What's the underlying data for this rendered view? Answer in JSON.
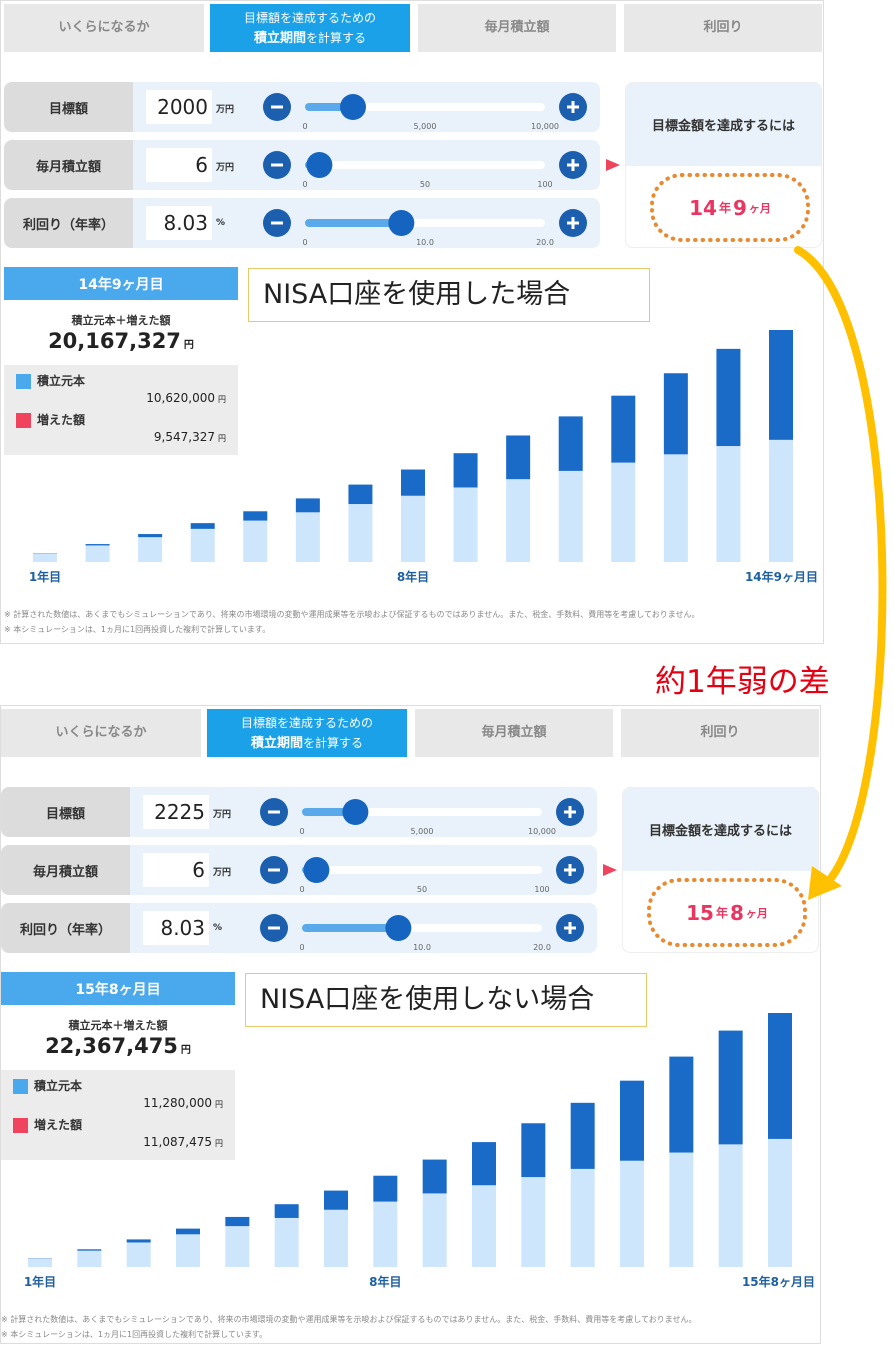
{
  "annotation": "約1年弱の差",
  "panels": [
    {
      "tabs": [
        "いくらになるか",
        {
          "line1": "目標額を達成するための",
          "line2_bold": "積立期間",
          "line2_rest": "を計算する"
        },
        "毎月積立額",
        "利回り"
      ],
      "inputs": [
        {
          "label": "目標額",
          "value": 2000,
          "unit": "万円",
          "ticks": [
            0,
            {
              "value": 5000,
              "label": "5,000"
            },
            {
              "value": 10000,
              "label": "10,000"
            }
          ]
        },
        {
          "label": "毎月積立額",
          "value": 6,
          "unit": "万円",
          "ticks": [
            0,
            50,
            100
          ]
        },
        {
          "label": "利回り（年率）",
          "value": 8.03,
          "unit": "%",
          "ticks": [
            0,
            {
              "value": 10,
              "label": "10.0"
            },
            {
              "value": 20,
              "label": "20.0"
            }
          ]
        }
      ],
      "result": {
        "heading": "目標金額を達成するには",
        "years": 14,
        "year_unit": "年",
        "months": 9,
        "month_unit": "ヶ月"
      },
      "summary": {
        "title": "14年9ヶ月目",
        "total_label": "積立元本＋増えた額",
        "total": "20,167,327",
        "currency": "円",
        "legend": [
          {
            "name": "積立元本",
            "color": "#4aa8ec",
            "amount": "10,620,000"
          },
          {
            "name": "増えた額",
            "color": "#f0435e",
            "amount": "9,547,327"
          }
        ]
      },
      "callout": "NISA口座を使用した場合",
      "chart": {
        "type": "bar",
        "stacked": true,
        "categories": [
          "1年目",
          null,
          null,
          null,
          null,
          null,
          null,
          "8年目",
          null,
          null,
          null,
          null,
          null,
          null,
          "14年9ヶ月目"
        ],
        "series": [
          {
            "color": "#cde6fb",
            "values": [
              72,
              144,
              216,
              288,
              360,
              432,
              504,
              576,
              648,
              720,
              792,
              864,
              936,
              1008,
              1062
            ]
          },
          {
            "color": "#1a6bc8",
            "values": [
              3,
              12,
              27,
              50,
              81,
              121,
              169,
              228,
              298,
              380,
              474,
              582,
              705,
              845,
              955
            ]
          }
        ]
      },
      "footnotes": [
        "※ 計算された数値は、あくまでもシミュレーションであり、将来の市場環境の変動や運用成果等を示唆および保証するものではありません。また、税金、手数料、費用等を考慮しておりません。",
        "※ 本シミュレーションは、1ヵ月に1回再投資した複利で計算しています。"
      ]
    },
    {
      "tabs": [
        "いくらになるか",
        {
          "line1": "目標額を達成するための",
          "line2_bold": "積立期間",
          "line2_rest": "を計算する"
        },
        "毎月積立額",
        "利回り"
      ],
      "inputs": [
        {
          "label": "目標額",
          "value": 2225,
          "unit": "万円",
          "ticks": [
            0,
            {
              "value": 5000,
              "label": "5,000"
            },
            {
              "value": 10000,
              "label": "10,000"
            }
          ]
        },
        {
          "label": "毎月積立額",
          "value": 6,
          "unit": "万円",
          "ticks": [
            0,
            50,
            100
          ]
        },
        {
          "label": "利回り（年率）",
          "value": 8.03,
          "unit": "%",
          "ticks": [
            0,
            {
              "value": 10,
              "label": "10.0"
            },
            {
              "value": 20,
              "label": "20.0"
            }
          ]
        }
      ],
      "result": {
        "heading": "目標金額を達成するには",
        "years": 15,
        "year_unit": "年",
        "months": 8,
        "month_unit": "ヶ月"
      },
      "summary": {
        "title": "15年8ヶ月目",
        "total_label": "積立元本＋増えた額",
        "total": "22,367,475",
        "currency": "円",
        "legend": [
          {
            "name": "積立元本",
            "color": "#4aa8ec",
            "amount": "11,280,000"
          },
          {
            "name": "増えた額",
            "color": "#f0435e",
            "amount": "11,087,475"
          }
        ]
      },
      "callout": "NISA口座を使用しない場合",
      "chart": {
        "type": "bar",
        "stacked": true,
        "categories": [
          "1年目",
          null,
          null,
          null,
          null,
          null,
          null,
          "8年目",
          null,
          null,
          null,
          null,
          null,
          null,
          null,
          "15年8ヶ月目"
        ],
        "series": [
          {
            "color": "#cde6fb",
            "values": [
              72,
              144,
              216,
              288,
              360,
              432,
              504,
              576,
              648,
              720,
              792,
              864,
              936,
              1008,
              1080,
              1128
            ]
          },
          {
            "color": "#1a6bc8",
            "values": [
              3,
              12,
              27,
              50,
              81,
              121,
              169,
              228,
              298,
              380,
              474,
              582,
              705,
              845,
              1002,
              1109
            ]
          }
        ]
      },
      "footnotes": [
        "※ 計算された数値は、あくまでもシミュレーションであり、将来の市場環境の変動や運用成果等を示唆および保証するものではありません。また、税金、手数料、費用等を考慮しておりません。",
        "※ 本シミュレーションは、1ヵ月に1回再投資した複利で計算しています。"
      ]
    }
  ]
}
